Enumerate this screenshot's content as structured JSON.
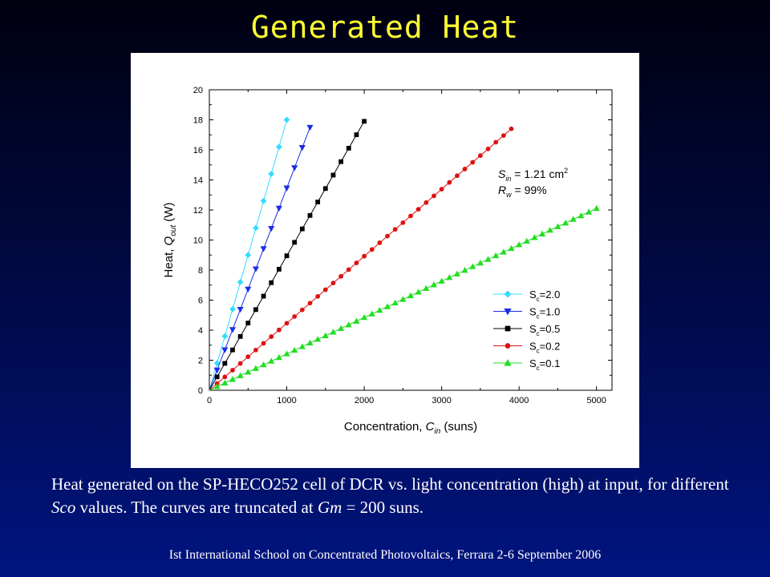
{
  "slide": {
    "title": "Generated Heat",
    "caption_parts": [
      {
        "text": "Heat generated on the SP-HECO252 cell of DCR vs. light concentration (high) at input, for different ",
        "italic": false
      },
      {
        "text": "Sco",
        "italic": true
      },
      {
        "text": " values. The curves are truncated at ",
        "italic": false
      },
      {
        "text": "Gm",
        "italic": true
      },
      {
        "text": " = 200 suns.",
        "italic": false
      }
    ],
    "footer": "Ist International School on Concentrated Photovoltaics, Ferrara 2-6 September 2006"
  },
  "colors": {
    "title": "#ffff33",
    "s20": "#33ddff",
    "s10": "#1a2ee6",
    "s05": "#000000",
    "s02": "#dd1111",
    "s01": "#22dd22"
  },
  "chart_data": {
    "type": "line",
    "xlabel": {
      "main": "Concentration, ",
      "sym": "C",
      "sub": "in",
      "unit": " (suns)"
    },
    "ylabel": {
      "main": "Heat, ",
      "sym": "Q",
      "sub": "out",
      "unit": " (W)"
    },
    "xlim": [
      0,
      5200
    ],
    "ylim": [
      0,
      20
    ],
    "xticks": [
      "0",
      "1000",
      "2000",
      "3000",
      "4000",
      "5000"
    ],
    "yticks": [
      "0",
      "2",
      "4",
      "6",
      "8",
      "10",
      "12",
      "14",
      "16",
      "18",
      "20"
    ],
    "legend_position": "lower-right",
    "annotation": {
      "line1": {
        "sym": "S",
        "sub": "in",
        "rest": " = 1.21 cm",
        "sup": "2"
      },
      "line2": {
        "sym": "R",
        "sub": "w",
        "rest": " = 99%"
      }
    },
    "series": [
      {
        "name_main": "S",
        "name_sub": "c",
        "name_rest": "=2.0",
        "color_key": "s20",
        "marker": "diamond",
        "x_end": 1000,
        "y_end": 18.0
      },
      {
        "name_main": "S",
        "name_sub": "c",
        "name_rest": "=1.0",
        "color_key": "s10",
        "marker": "triangle-down",
        "x_end": 1300,
        "y_end": 17.5
      },
      {
        "name_main": "S",
        "name_sub": "c",
        "name_rest": "=0.5",
        "color_key": "s05",
        "marker": "square",
        "x_end": 2000,
        "y_end": 17.9
      },
      {
        "name_main": "S",
        "name_sub": "c",
        "name_rest": "=0.2",
        "color_key": "s02",
        "marker": "circle",
        "x_end": 3900,
        "y_end": 17.4
      },
      {
        "name_main": "S",
        "name_sub": "c",
        "name_rest": "=0.1",
        "color_key": "s01",
        "marker": "triangle-up",
        "x_end": 5000,
        "y_end": 12.1
      }
    ]
  }
}
